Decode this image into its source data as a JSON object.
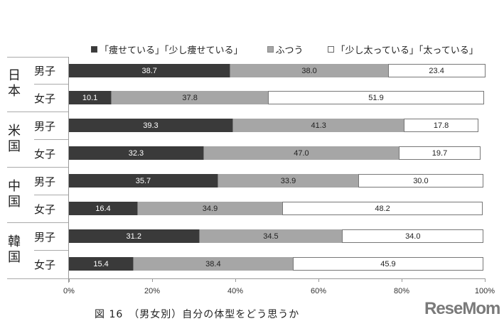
{
  "legend": [
    {
      "label": "「痩せている」「少し痩せている」",
      "color": "#3a3a3a"
    },
    {
      "label": "ふつう",
      "color": "#a6a6a6"
    },
    {
      "label": "「少し太っている」「太っている」",
      "color": "#ffffff"
    }
  ],
  "countries": [
    "日本",
    "米国",
    "中国",
    "韓国"
  ],
  "genders": [
    "男子",
    "女子"
  ],
  "rows": [
    {
      "country": "日本",
      "gender": "男子",
      "values": [
        "38.7",
        "38.0",
        "23.4"
      ]
    },
    {
      "country": "日本",
      "gender": "女子",
      "values": [
        "10.1",
        "37.8",
        "51.9"
      ]
    },
    {
      "country": "米国",
      "gender": "男子",
      "values": [
        "39.3",
        "41.3",
        "17.8"
      ]
    },
    {
      "country": "米国",
      "gender": "女子",
      "values": [
        "32.3",
        "47.0",
        "19.7"
      ]
    },
    {
      "country": "中国",
      "gender": "男子",
      "values": [
        "35.7",
        "33.9",
        "30.0"
      ]
    },
    {
      "country": "中国",
      "gender": "女子",
      "values": [
        "16.4",
        "34.9",
        "48.2"
      ]
    },
    {
      "country": "韓国",
      "gender": "男子",
      "values": [
        "31.2",
        "34.5",
        "34.0"
      ]
    },
    {
      "country": "韓国",
      "gender": "女子",
      "values": [
        "15.4",
        "38.4",
        "45.9"
      ]
    }
  ],
  "x_ticks": [
    "0%",
    "20%",
    "40%",
    "60%",
    "80%",
    "100%"
  ],
  "caption": "図 16　（男女別）自分の体型をどう思うか",
  "logo": "ReseMom",
  "chart_data": {
    "type": "bar",
    "orientation": "horizontal-stacked",
    "title": "図 16 （男女別）自分の体型をどう思うか",
    "categories": [
      "日本 男子",
      "日本 女子",
      "米国 男子",
      "米国 女子",
      "中国 男子",
      "中国 女子",
      "韓国 男子",
      "韓国 女子"
    ],
    "series": [
      {
        "name": "「痩せている」「少し痩せている」",
        "values": [
          38.7,
          10.1,
          39.3,
          32.3,
          35.7,
          16.4,
          31.2,
          15.4
        ]
      },
      {
        "name": "ふつう",
        "values": [
          38.0,
          37.8,
          41.3,
          47.0,
          33.9,
          34.9,
          34.5,
          38.4
        ]
      },
      {
        "name": "「少し太っている」「太っている」",
        "values": [
          23.4,
          51.9,
          17.8,
          19.7,
          30.0,
          48.2,
          34.0,
          45.9
        ]
      }
    ],
    "xlabel": "",
    "ylabel": "",
    "xlim": [
      0,
      100
    ],
    "x_tick_labels": [
      "0%",
      "20%",
      "40%",
      "60%",
      "80%",
      "100%"
    ],
    "legend_position": "top",
    "grid": false
  }
}
